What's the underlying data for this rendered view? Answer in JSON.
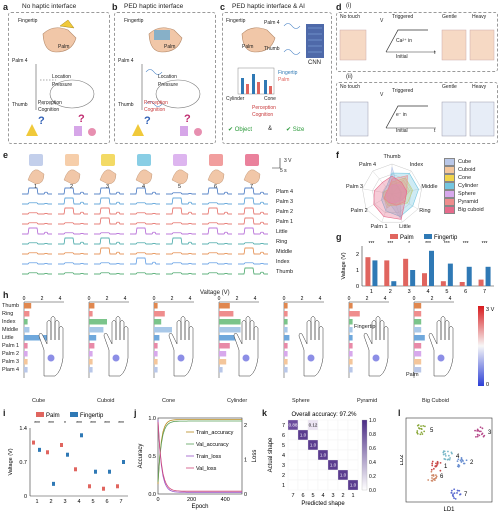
{
  "panels": {
    "a": {
      "label": "a",
      "title": "No haptic interface",
      "fingertip": "Fingertip",
      "palm": "Palm",
      "palm4": "Palm 4",
      "thumb": "Thumb",
      "location": "Location",
      "pressure": "Pressure",
      "perception": "Perception",
      "cognition": "Cognition",
      "q": "?"
    },
    "b": {
      "label": "b",
      "title": "PED haptic interface",
      "fingertip": "Fingertip",
      "palm": "Palm",
      "palm4": "Palm 4",
      "thumb": "Thumb",
      "location": "Location",
      "pressure": "Pressure",
      "perception": "Perception",
      "cognition": "Cognition",
      "q": "?"
    },
    "c": {
      "label": "c",
      "title": "PED haptic interface & AI",
      "fingertip": "Fingertip",
      "palm": "Palm",
      "palm4": "Palm 4",
      "thumb": "Thumb",
      "cnn": "CNN",
      "legend_fingertip": "Fingertip",
      "legend_palm": "Palm",
      "cylinder": "Cylinder",
      "cone": "Cone",
      "perception": "Perception",
      "cognition": "Cognition",
      "object": "Object",
      "amp": "&",
      "size": "Size"
    },
    "d": {
      "label": "d",
      "sub1": "(i)",
      "sub2": "(ii)",
      "no_touch": "No touch",
      "triggered": "Triggered",
      "gentle": "Gentle",
      "heavy": "Heavy",
      "initial": "Initial",
      "t": "t",
      "v": "V",
      "ca": "Ca²⁺ in",
      "e": "e⁻ in"
    },
    "e": {
      "label": "e",
      "objects": [
        "1",
        "2",
        "3",
        "4",
        "5",
        "6",
        "7"
      ],
      "rows": [
        "Plam 4",
        "Palm 3",
        "Palm 2",
        "Palm 1",
        "Little",
        "Ring",
        "Middle",
        "Index",
        "Thumb"
      ],
      "scale_v": "3 V",
      "scale_t": "5 s"
    },
    "f": {
      "label": "f",
      "axes": [
        "Thumb",
        "Index",
        "Middle",
        "Ring",
        "Little",
        "Palm 1",
        "Palm 2",
        "Palm 3",
        "Palm 4"
      ],
      "legend": [
        "Cube",
        "Cuboid",
        "Cone",
        "Cylinder",
        "Sphere",
        "Pyramid",
        "Big cuboid"
      ]
    },
    "g": {
      "label": "g",
      "legend_palm": "Palm",
      "legend_fingertip": "Fingertip",
      "ylabel": "Valtage (V)",
      "yticks": [
        "0",
        "1",
        "2"
      ],
      "x": [
        "1",
        "2",
        "3",
        "4",
        "5",
        "6",
        "7"
      ],
      "sig": [
        "***",
        "***",
        "*",
        "***",
        "***",
        "***",
        "***"
      ]
    },
    "h": {
      "label": "h",
      "axis_title": "Valtage (V)",
      "ticks": [
        "0",
        "2",
        "4"
      ],
      "rows": [
        "Thumb",
        "Ring",
        "Index",
        "Middle",
        "Little",
        "Palm 1",
        "Palm 2",
        "Palm 3",
        "Plam 4"
      ],
      "objects": [
        "Cube",
        "Cuboid",
        "Cone",
        "Cylinder",
        "Sphere",
        "Pyramid",
        "Big Cuboid"
      ],
      "fingertip": "Fingertip",
      "palm": "Palm",
      "cbar_top": "3 V",
      "cbar_bot": "0"
    },
    "i": {
      "label": "i",
      "legend_palm": "Palm",
      "legend_fingertip": "Fingertip",
      "ylabel": "Valtage (V)",
      "yticks": [
        "0",
        "0.7",
        "1.4"
      ],
      "x": [
        "1",
        "2",
        "3",
        "4",
        "5",
        "6",
        "7"
      ],
      "sig": [
        "***",
        "***",
        "*",
        "***",
        "***",
        "***",
        "***"
      ]
    },
    "j": {
      "label": "j",
      "xlabel": "Epoch",
      "ylabel_l": "Accuracy",
      "ylabel_r": "Loss",
      "xticks": [
        "0",
        "200",
        "400"
      ],
      "yticks_l": [
        "0.0",
        "0.5",
        "1.0"
      ],
      "yticks_r": [
        "0",
        "1",
        "2"
      ],
      "legend": [
        "Train_accuracy",
        "Val_accuracy",
        "Train_loss",
        "Val_loss"
      ]
    },
    "k": {
      "label": "k",
      "title": "Overall accuracy: 97.2%",
      "xlabel": "Predicted shape",
      "ylabel": "Actual shape",
      "ticks": [
        "7",
        "6",
        "5",
        "4",
        "3",
        "2",
        "1"
      ],
      "cbar_ticks": [
        "0.0",
        "0.2",
        "0.4",
        "0.6",
        "0.8",
        "1.0"
      ],
      "cells": {
        "top_a": "0.88",
        "top_b": "0.12",
        "diag": "1.0"
      }
    },
    "l": {
      "label": "l",
      "xlabel": "LD1",
      "ylabel": "LD2",
      "clusters": [
        "1",
        "2",
        "3",
        "4",
        "5",
        "6",
        "7"
      ]
    }
  },
  "chart_data": [
    {
      "type": "bar",
      "panel": "g",
      "categories": [
        "1",
        "2",
        "3",
        "4",
        "5",
        "6",
        "7"
      ],
      "series": [
        {
          "name": "Palm",
          "values": [
            1.8,
            1.6,
            1.7,
            0.8,
            0.3,
            0.25,
            0.4
          ]
        },
        {
          "name": "Fingertip",
          "values": [
            1.6,
            0.3,
            1.0,
            2.2,
            1.4,
            1.2,
            1.2
          ]
        }
      ],
      "ylim": [
        0,
        2.5
      ],
      "ylabel": "Valtage (V)"
    },
    {
      "type": "scatter",
      "panel": "i",
      "categories": [
        "1",
        "2",
        "3",
        "4",
        "5",
        "6",
        "7"
      ],
      "series": [
        {
          "name": "Palm",
          "values": [
            1.1,
            0.9,
            1.05,
            0.55,
            0.2,
            0.15,
            0.2
          ]
        },
        {
          "name": "Fingertip",
          "values": [
            0.95,
            0.25,
            0.85,
            1.25,
            0.5,
            0.5,
            0.7
          ]
        }
      ],
      "ylim": [
        0,
        1.4
      ],
      "ylabel": "Valtage (V)"
    },
    {
      "type": "heatmap",
      "panel": "k",
      "title": "Overall accuracy: 97.2%",
      "xlabel": "Predicted shape",
      "ylabel": "Actual shape"
    },
    {
      "type": "scatter",
      "panel": "l",
      "xlabel": "LD1",
      "ylabel": "LD2"
    },
    {
      "type": "line",
      "panel": "j",
      "xlabel": "Epoch",
      "xlim": [
        0,
        500
      ]
    }
  ],
  "colors": {
    "palm": "#e0655f",
    "fingertip": "#2f79b5",
    "cube": "#b9c7e8",
    "cuboid": "#f4c69b",
    "cone": "#f1d44a",
    "cylinder": "#74c6e0",
    "sphere": "#d7a8ec",
    "pyramid": "#ef8d8d",
    "bigcuboid": "#e66b8b"
  }
}
